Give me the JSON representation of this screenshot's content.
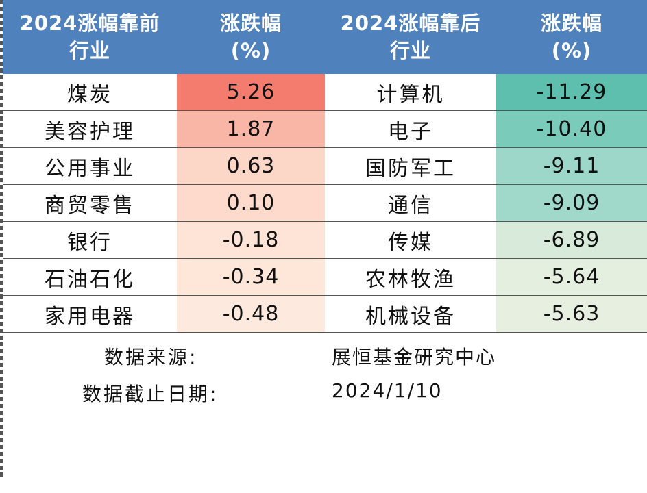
{
  "headers": {
    "industry_before_l1": "2024涨幅靠前",
    "industry_before_l2": "行业",
    "change_l1": "涨跌幅",
    "change_l2": "(%)",
    "industry_after_l1": "2024涨幅靠后",
    "industry_after_l2": "行业",
    "change2_l1": "涨跌幅",
    "change2_l2": "(%)"
  },
  "rows": [
    {
      "top_industry": "煤炭",
      "top_change": "5.26",
      "bottom_industry": "计算机",
      "bottom_change": "-11.29"
    },
    {
      "top_industry": "美容护理",
      "top_change": "1.87",
      "bottom_industry": "电子",
      "bottom_change": "-10.40"
    },
    {
      "top_industry": "公用事业",
      "top_change": "0.63",
      "bottom_industry": "国防军工",
      "bottom_change": "-9.11"
    },
    {
      "top_industry": "商贸零售",
      "top_change": "0.10",
      "bottom_industry": "通信",
      "bottom_change": "-9.09"
    },
    {
      "top_industry": "银行",
      "top_change": "-0.18",
      "bottom_industry": "传媒",
      "bottom_change": "-6.89"
    },
    {
      "top_industry": "石油石化",
      "top_change": "-0.34",
      "bottom_industry": "农林牧渔",
      "bottom_change": "-5.64"
    },
    {
      "top_industry": "家用电器",
      "top_change": "-0.48",
      "bottom_industry": "机械设备",
      "bottom_change": "-5.63"
    }
  ],
  "colors": {
    "header_bg": "#4f81bd",
    "top_change_bg": [
      "#f47c6e",
      "#f9b5a5",
      "#fcd6c6",
      "#fddacb",
      "#fee4d6",
      "#fee7d9",
      "#fde9dd"
    ],
    "bottom_change_bg": [
      "#5fbfae",
      "#7bcbbb",
      "#9dd7c9",
      "#a0d8ca",
      "#d8ebda",
      "#e5efdf",
      "#e6efe0"
    ]
  },
  "footer": {
    "source_label": "数据来源:",
    "source_value": "展恒基金研究中心",
    "date_label": "数据截止日期:",
    "date_value": "2024/1/10"
  }
}
